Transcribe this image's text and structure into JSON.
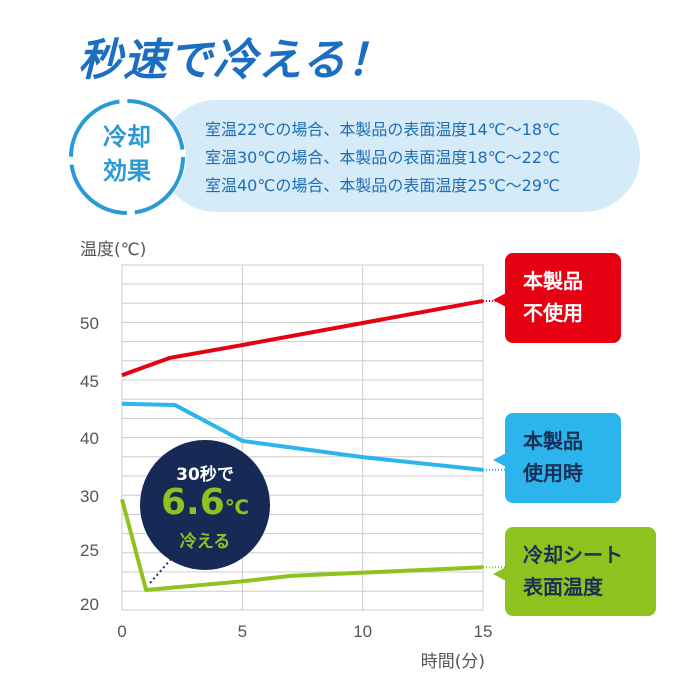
{
  "header": {
    "title": "秒速で冷える！"
  },
  "cooling_effect": {
    "label_line1": "冷却",
    "label_line2": "効果",
    "lines": [
      "室温22℃の場合、本製品の表面温度14℃～18℃",
      "室温30℃の場合、本製品の表面温度18℃～22℃",
      "室温40℃の場合、本製品の表面温度25℃～29℃"
    ]
  },
  "badge": {
    "line1": "30秒で",
    "value": "6.6",
    "unit": "℃",
    "line3": "冷える"
  },
  "callouts": [
    {
      "line1": "本製品",
      "line2": "不使用"
    },
    {
      "line1": "本製品",
      "line2": "使用時"
    },
    {
      "line1": "冷却シート",
      "line2": "表面温度"
    }
  ],
  "chart_data": {
    "type": "line",
    "ylabel": "温度(℃)",
    "xlabel": "時間(分)",
    "xlim": [
      0,
      15
    ],
    "x_ticks": [
      0,
      5,
      10,
      15
    ],
    "y_ticks": [
      20,
      25,
      30,
      40,
      45,
      50
    ],
    "y_axis_note": "broken scale: tick labels evenly spaced",
    "grid": true,
    "series": [
      {
        "name": "本製品 不使用",
        "color": "#e50012",
        "x": [
          0,
          2,
          5,
          10,
          15
        ],
        "y": [
          45.5,
          47,
          48.1,
          50,
          51.9
        ]
      },
      {
        "name": "本製品 使用時",
        "color": "#2bb5ec",
        "x": [
          0,
          2.2,
          5,
          10,
          15
        ],
        "y": [
          43,
          42.9,
          39.5,
          36.7,
          34.5
        ]
      },
      {
        "name": "冷却シート 表面温度",
        "color": "#8dc21f",
        "x": [
          0,
          1,
          5,
          7,
          10,
          15
        ],
        "y": [
          29.7,
          21.3,
          22.1,
          22.6,
          22.9,
          23.4
        ]
      }
    ]
  }
}
